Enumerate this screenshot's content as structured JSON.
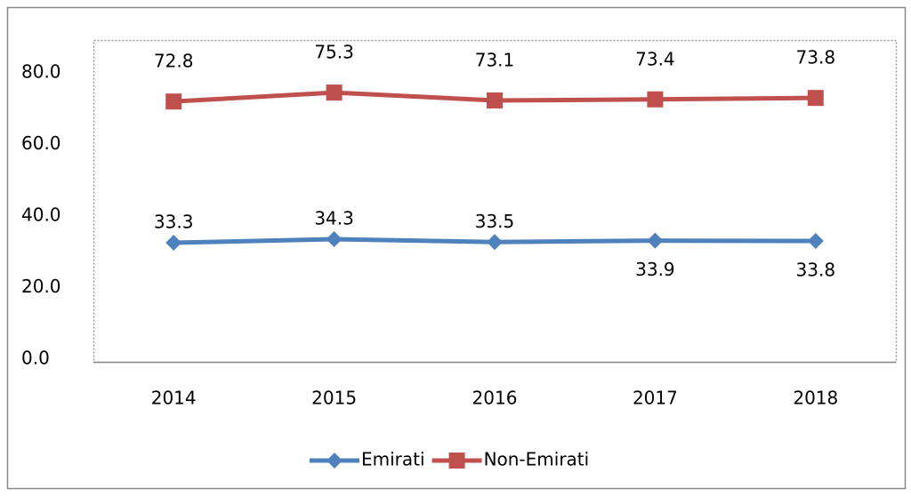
{
  "chart_data": {
    "type": "line",
    "categories": [
      "2014",
      "2015",
      "2016",
      "2017",
      "2018"
    ],
    "series": [
      {
        "name": "Emirati",
        "color": "#4f81bd",
        "marker": "diamond",
        "values": [
          33.3,
          34.3,
          33.5,
          33.9,
          33.8
        ]
      },
      {
        "name": "Non-Emirati",
        "color": "#c0504d",
        "marker": "square",
        "values": [
          72.8,
          75.3,
          73.1,
          73.4,
          73.8
        ]
      }
    ],
    "ylim": [
      0,
      90
    ],
    "yticks": [
      {
        "value": 0,
        "label": "0.0"
      },
      {
        "value": 20,
        "label": "20.0"
      },
      {
        "value": 40,
        "label": "40.0"
      },
      {
        "value": 60,
        "label": "60.0"
      },
      {
        "value": 80,
        "label": "80.0"
      }
    ],
    "legend": "bottom"
  }
}
